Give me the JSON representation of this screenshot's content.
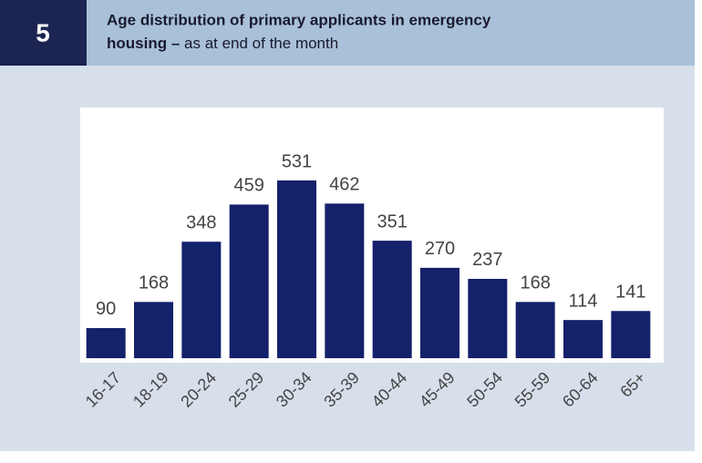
{
  "chart_data": {
    "type": "bar",
    "figure_number": "5",
    "title": "Age distribution of primary applicants in emergency housing –",
    "subtitle": "as at end of the month",
    "categories": [
      "16-17",
      "18-19",
      "20-24",
      "25-29",
      "30-34",
      "35-39",
      "40-44",
      "45-49",
      "50-54",
      "55-59",
      "60-64",
      "65+"
    ],
    "values": [
      90,
      168,
      348,
      459,
      531,
      462,
      351,
      270,
      237,
      168,
      114,
      141
    ],
    "color": "#14216b"
  }
}
